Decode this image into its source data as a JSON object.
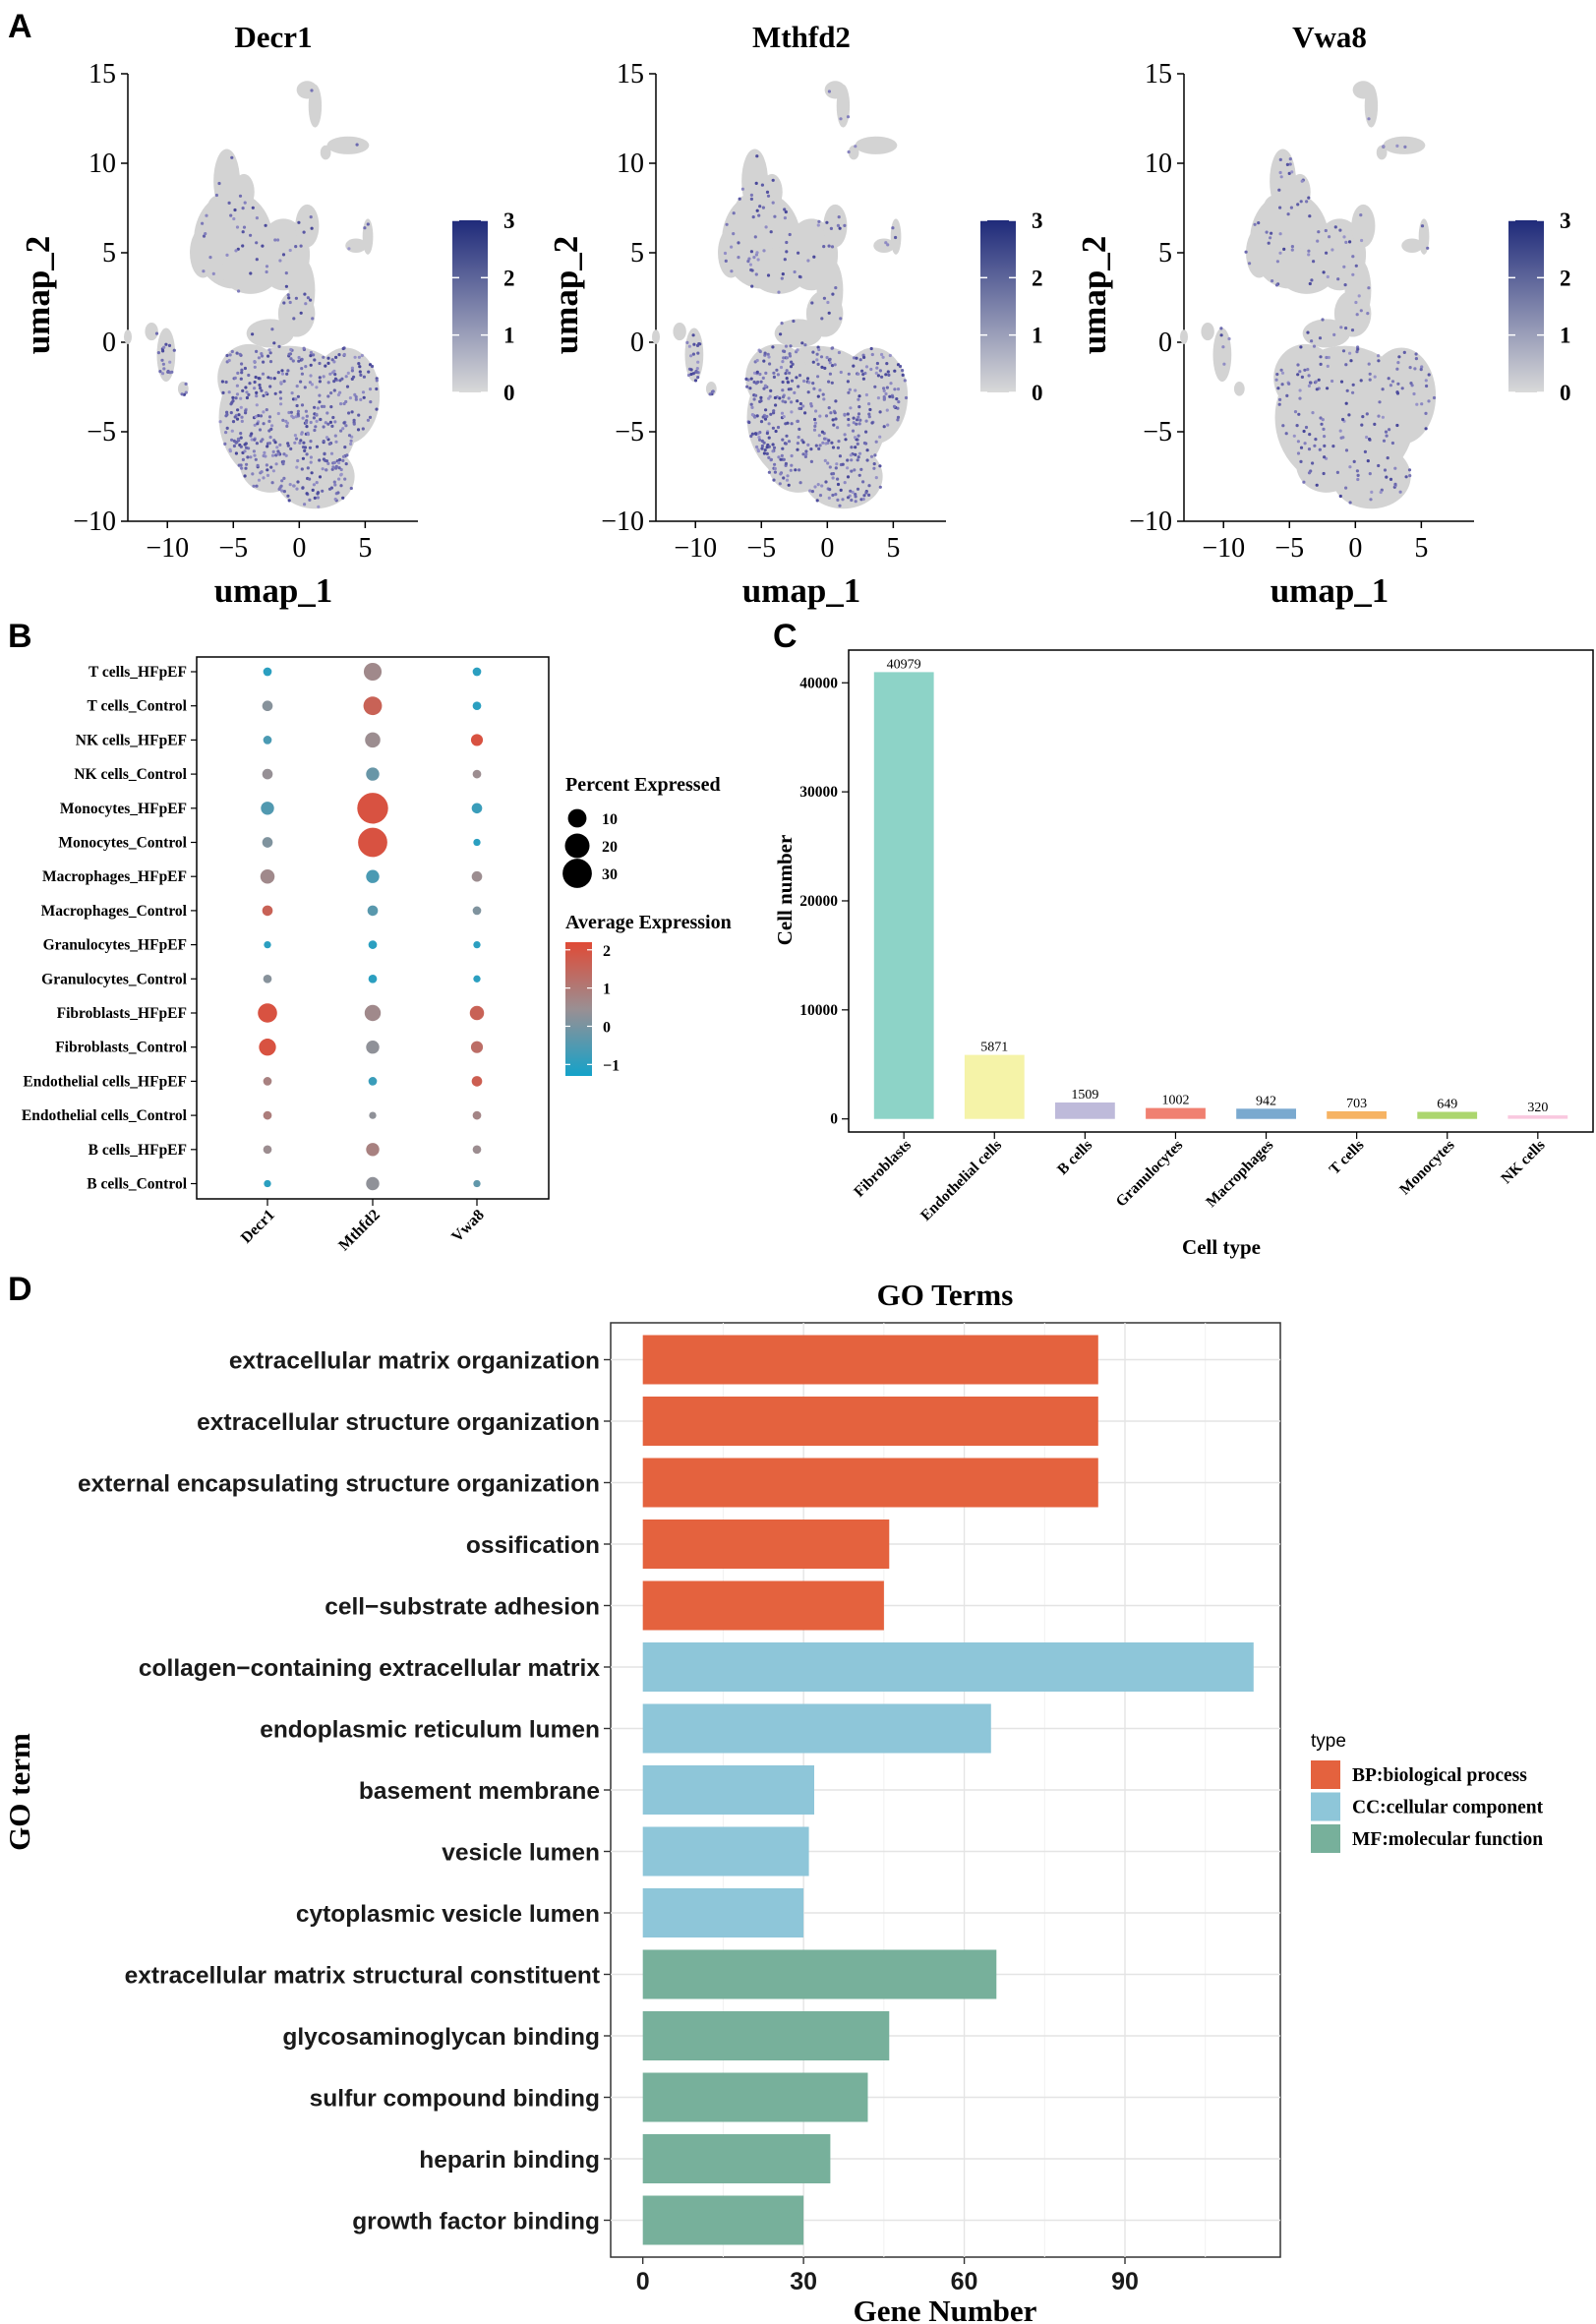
{
  "panel_labels": [
    "A",
    "B",
    "C",
    "D"
  ],
  "chart_data": [
    {
      "type": "scatter",
      "subtype": "umap-feature-plot",
      "panel": "A",
      "panels": [
        {
          "title": "Decr1",
          "pattern": "lower-lobe"
        },
        {
          "title": "Mthfd2",
          "pattern": "left-lobe"
        },
        {
          "title": "Vwa8",
          "pattern": "sparse"
        }
      ],
      "xlabel": "umap_1",
      "ylabel": "umap_2",
      "xticks": [
        -10,
        -5,
        0,
        5
      ],
      "yticks": [
        15,
        10,
        5,
        0,
        -5,
        -10
      ],
      "xlim": [
        -13,
        9
      ],
      "ylim": [
        -10,
        15
      ],
      "colorbar": {
        "ticks": [
          3,
          2,
          1,
          0
        ],
        "range": [
          0,
          3
        ],
        "low_color": "#d9d9d9",
        "high_color": "#1f2a7a"
      }
    },
    {
      "type": "scatter",
      "subtype": "dot-plot",
      "panel": "B",
      "genes": [
        "Decr1",
        "Mthfd2",
        "Vwa8"
      ],
      "groups": [
        "T cells_HFpEF",
        "T cells_Control",
        "NK cells_HFpEF",
        "NK cells_Control",
        "Monocytes_HFpEF",
        "Monocytes_Control",
        "Macrophages_HFpEF",
        "Macrophages_Control",
        "Granulocytes_HFpEF",
        "Granulocytes_Control",
        "Fibroblasts_HFpEF",
        "Fibroblasts_Control",
        "Endothelial cells_HFpEF",
        "Endothelial cells_Control",
        "B cells_HFpEF",
        "B cells_Control"
      ],
      "percent_expressed": [
        [
          1,
          9,
          1
        ],
        [
          2,
          10,
          1
        ],
        [
          1,
          6,
          3
        ],
        [
          2,
          4,
          1
        ],
        [
          4,
          34,
          2
        ],
        [
          2,
          30,
          0.5
        ],
        [
          5,
          4,
          2
        ],
        [
          2,
          2,
          1
        ],
        [
          0.5,
          1,
          0.5
        ],
        [
          1,
          1,
          0.5
        ],
        [
          11,
          7,
          5
        ],
        [
          8,
          4,
          3
        ],
        [
          1,
          1,
          2
        ],
        [
          1,
          0.5,
          1
        ],
        [
          1,
          4,
          1
        ],
        [
          0.5,
          4,
          0.5
        ]
      ],
      "average_expression": [
        [
          -1,
          0.6,
          -1
        ],
        [
          0.2,
          1.6,
          -1
        ],
        [
          -0.6,
          0.5,
          2
        ],
        [
          0.4,
          -0.2,
          0.5
        ],
        [
          -0.5,
          2,
          -0.8
        ],
        [
          0.1,
          2,
          -1
        ],
        [
          0.6,
          -0.6,
          0.5
        ],
        [
          1.6,
          -0.4,
          0.1
        ],
        [
          -1,
          -1,
          -1
        ],
        [
          0.2,
          -1,
          -1
        ],
        [
          2,
          0.6,
          1.6
        ],
        [
          2,
          0.3,
          1.3
        ],
        [
          0.8,
          -0.8,
          1.7
        ],
        [
          0.9,
          0.3,
          0.7
        ],
        [
          0.5,
          0.8,
          0.5
        ],
        [
          -1,
          0.3,
          -0.3
        ]
      ],
      "legend": {
        "size_title": "Percent Expressed",
        "size_ticks": [
          10,
          20,
          30
        ],
        "color_title": "Average Expression",
        "color_ticks": [
          2,
          1,
          0,
          -1
        ],
        "color_range": [
          -1.3,
          2.2
        ],
        "low_color": "#14a2c9",
        "high_color": "#e04a36"
      }
    },
    {
      "type": "bar",
      "panel": "C",
      "categories": [
        "Fibroblasts",
        "Endothelial cells",
        "B cells",
        "Granulocytes",
        "Macrophages",
        "T cells",
        "Monocytes",
        "NK cells"
      ],
      "values": [
        40979,
        5871,
        1509,
        1002,
        942,
        703,
        649,
        320
      ],
      "colors": [
        "#8dd3c7",
        "#f5f3a8",
        "#bebada",
        "#f08071",
        "#7aa9cf",
        "#f6b363",
        "#acd66e",
        "#f9c8df"
      ],
      "xlabel": "Cell type",
      "ylabel": "Cell number",
      "yticks": [
        0,
        10000,
        20000,
        30000,
        40000
      ],
      "ylim": [
        -1200,
        43000
      ]
    },
    {
      "type": "bar",
      "orientation": "horizontal",
      "panel": "D",
      "title": "GO Terms",
      "xlabel": "Gene Number",
      "ylabel": "GO term",
      "xticks": [
        0,
        30,
        60,
        90
      ],
      "xlim": [
        -6,
        119
      ],
      "categories": [
        "extracellular matrix organization",
        "extracellular structure organization",
        "external encapsulating structure organization",
        "ossification",
        "cell−substrate adhesion",
        "collagen−containing extracellular matrix",
        "endoplasmic reticulum lumen",
        "basement membrane",
        "vesicle lumen",
        "cytoplasmic vesicle lumen",
        "extracellular matrix structural constituent",
        "glycosaminoglycan binding",
        "sulfur compound binding",
        "heparin binding",
        "growth factor binding"
      ],
      "values": [
        85,
        85,
        85,
        46,
        45,
        114,
        65,
        32,
        31,
        30,
        66,
        46,
        42,
        35,
        30
      ],
      "types": [
        "BP",
        "BP",
        "BP",
        "BP",
        "BP",
        "CC",
        "CC",
        "CC",
        "CC",
        "CC",
        "MF",
        "MF",
        "MF",
        "MF",
        "MF"
      ],
      "legend": {
        "title": "type",
        "entries": [
          {
            "key": "BP",
            "label": "BP:biological process",
            "color": "#e4623e"
          },
          {
            "key": "CC",
            "label": "CC:cellular component",
            "color": "#8ec6d9"
          },
          {
            "key": "MF",
            "label": "MF:molecular function",
            "color": "#77b09b"
          }
        ]
      }
    }
  ]
}
